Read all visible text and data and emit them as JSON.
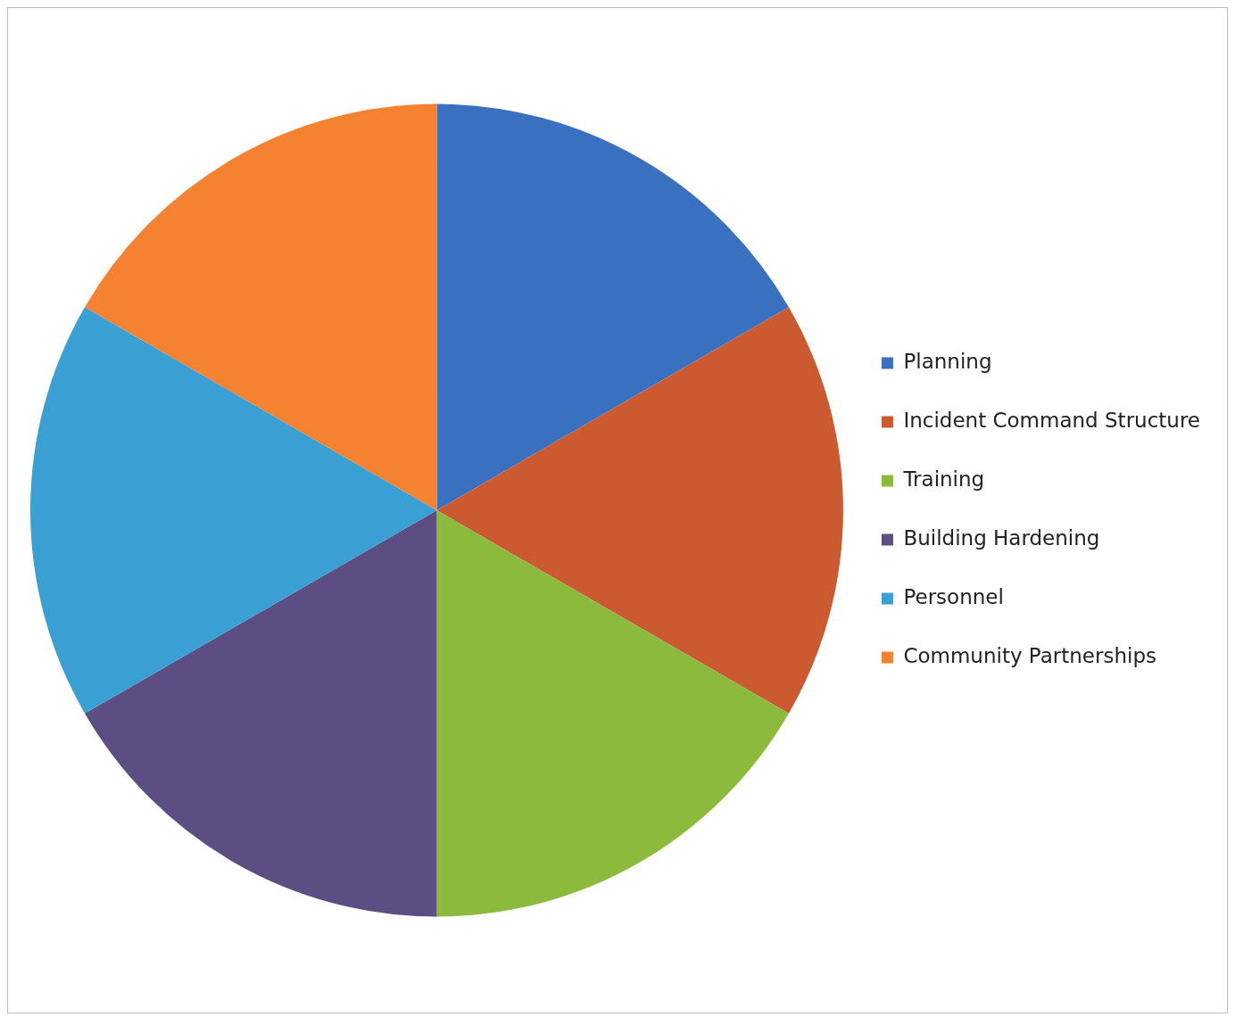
{
  "chart_data": {
    "type": "pie",
    "categories": [
      "Planning",
      "Incident Command Structure",
      "Training",
      "Building Hardening",
      "Personnel",
      "Community Partnerships"
    ],
    "values": [
      16.67,
      16.67,
      16.67,
      16.67,
      16.67,
      16.67
    ],
    "colors": [
      "#3a70c0",
      "#cc5a30",
      "#8cba3c",
      "#5c4e82",
      "#3aa0d4",
      "#f58230"
    ],
    "legend": "right"
  }
}
